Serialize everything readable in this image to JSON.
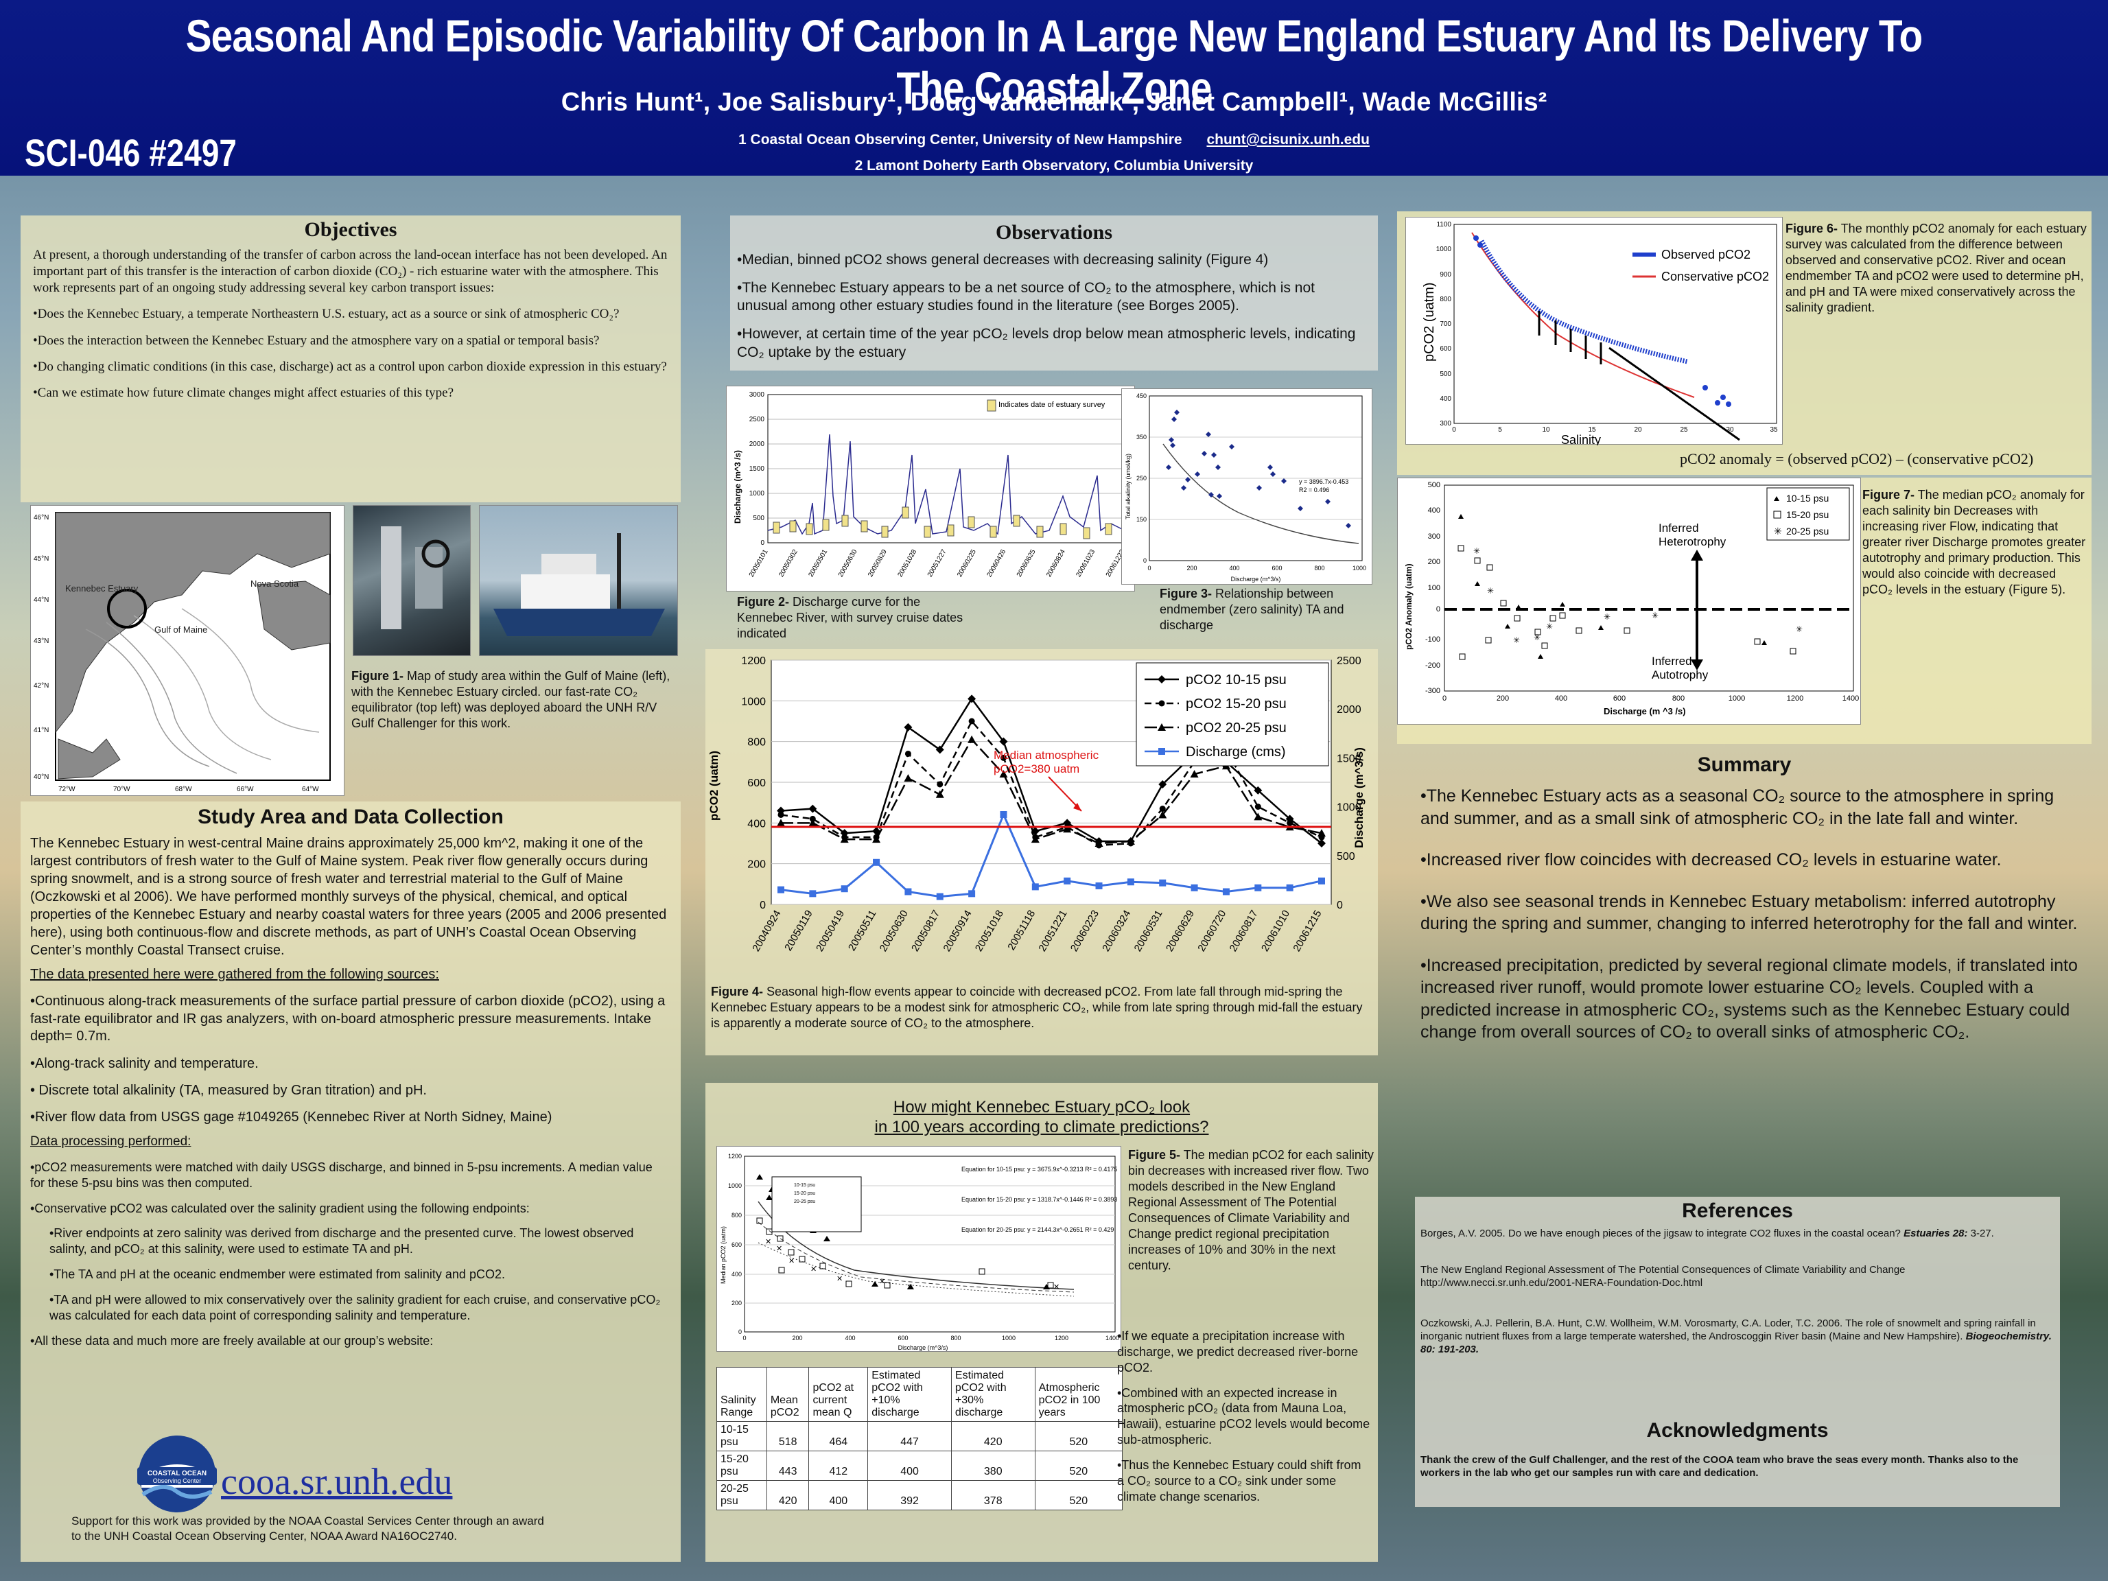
{
  "header": {
    "title": "Seasonal And Episodic Variability Of Carbon In A Large New England Estuary And Its Delivery To The Coastal Zone",
    "authors": "Chris Hunt¹, Joe Salisbury¹, Doug Vandemark¹,  Janet Campbell¹, Wade McGillis²",
    "affil1": "1 Coastal Ocean Observing Center, University of New Hampshire",
    "email": "chunt@cisunix.unh.edu",
    "affil2": "2 Lamont Doherty Earth Observatory, Columbia University",
    "poster_id": "SCI-046 #2497"
  },
  "objectives": {
    "heading": "Objectives",
    "intro": "At present, a thorough understanding of the transfer of carbon across the land-ocean interface has not been developed.  An important part of this transfer is the interaction of carbon dioxide (CO₂) - rich estuarine water with the atmosphere.  This work represents part of an ongoing study addressing several key carbon transport issues:",
    "q1": "•Does the Kennebec Estuary, a temperate Northeastern U.S. estuary, act as a source or sink of atmospheric CO₂?",
    "q2": "•Does the interaction between the Kennebec Estuary and the atmosphere vary on a spatial or temporal basis?",
    "q3": "•Do changing climatic  conditions (in this case, discharge) act as a control upon carbon dioxide expression in this estuary?",
    "q4": "•Can we estimate how future climate changes might affect estuaries of this type?"
  },
  "fig1": {
    "map_labels": {
      "kennebec": "Kennebec Estuary",
      "gulf": "Gulf of Maine",
      "nova": "Nova Scotia"
    },
    "lat_ticks": [
      "46°N",
      "45°N",
      "44°N",
      "43°N",
      "42°N",
      "41°N",
      "40°N"
    ],
    "lon_ticks": [
      "72°W",
      "70°W",
      "68°W",
      "66°W",
      "64°W"
    ],
    "caption_bold": "Figure 1-",
    "caption": " Map of study area within the Gulf of Maine (left), with the Kennebec Estuary circled. our fast-rate CO₂ equilibrator (top left) was deployed aboard the UNH R/V Gulf Challenger for this work."
  },
  "study": {
    "heading": "Study Area and Data Collection",
    "para": "The Kennebec Estuary in west-central Maine drains approximately 25,000 km^2, making it one of the largest contributors of fresh water to the Gulf of Maine system. Peak river flow generally occurs during spring snowmelt, and is a strong source of fresh water and terrestrial material to the Gulf of Maine (Oczkowski et al 2006).  We have performed monthly surveys of the physical, chemical, and optical properties of the Kennebec Estuary and nearby coastal waters for three years (2005 and 2006 presented here), using both continuous-flow and discrete methods, as part of UNH’s Coastal Ocean Observing Center’s monthly Coastal Transect cruise.",
    "sources_heading": "The data presented here were gathered from the following sources:",
    "s1": "•Continuous along-track measurements of the surface partial pressure of carbon dioxide (pCO2), using a fast-rate equilibrator and IR gas analyzers, with on-board atmospheric pressure measurements.  Intake depth= 0.7m.",
    "s2": "•Along-track salinity and temperature.",
    "s3": "• Discrete total alkalinity (TA, measured by Gran titration) and pH.",
    "s4": "•River flow data from USGS gage #1049265 (Kennebec River at North Sidney, Maine)",
    "proc_heading": "Data processing performed:",
    "p1": "•pCO2 measurements were matched with daily USGS discharge, and binned in 5-psu increments.  A median value for these 5-psu bins was then computed.",
    "p2": "•Conservative pCO2 was calculated over the salinity gradient using the following endpoints:",
    "p3": "•River endpoints at zero salinity was derived from discharge and the presented curve.  The lowest observed salinty, and pCO₂ at this salinity, were used to estimate TA and pH.",
    "p4": "•The TA and pH at the oceanic endmember were estimated from salinity and pCO2.",
    "p5": "•TA and pH were allowed to mix conservatively over the salinity gradient for each cruise, and conservative pCO₂ was calculated for each data point of corresponding salinity and temperature.",
    "p6": "•All these data and much more are freely available at our group’s website:",
    "logo_text1": "COASTAL OCEAN",
    "logo_text2": "Observing Center",
    "website": "cooa.sr.unh.edu",
    "support": "Support for this work was provided by the NOAA Coastal Services Center through an award to the UNH Coastal Ocean Observing Center, NOAA Award NA16OC2740."
  },
  "observations": {
    "heading": "Observations",
    "b1": "•Median, binned pCO2 shows general decreases with decreasing salinity (Figure 4)",
    "b2": "•The Kennebec Estuary appears to be a net source of CO₂ to the atmosphere, which is not unusual among other estuary studies found in the literature (see Borges 2005).",
    "b3": "•However, at certain time of the year pCO₂ levels drop below mean atmospheric levels, indicating CO₂ uptake by the estuary"
  },
  "fig2": {
    "ylabel": "Discharge (m^3 /s)",
    "legend": "Indicates date of estuary survey",
    "y_ticks": [
      "0",
      "500",
      "1000",
      "1500",
      "2000",
      "2500",
      "3000"
    ],
    "x_ticks": [
      "20050101",
      "20050302",
      "20050501",
      "20050630",
      "20050829",
      "20051028",
      "20051227",
      "20060225",
      "20060426",
      "20060625",
      "20060824",
      "20061023",
      "20061222"
    ],
    "caption_bold": "Figure 2-",
    "caption": " Discharge curve for the Kennebec River, with survey cruise dates indicated"
  },
  "fig3": {
    "ylabel": "Total alkalinity (umol/kg)",
    "xlabel": "Discharge (m^3/s)",
    "eq1": "y = 3896.7x-0.453",
    "eq2": "R2 = 0.496",
    "y_ticks": [
      "0",
      "50",
      "100",
      "150",
      "200",
      "250",
      "300",
      "350",
      "400",
      "450"
    ],
    "x_ticks": [
      "0",
      "200",
      "400",
      "600",
      "800",
      "1000"
    ],
    "caption_bold": "Figure 3-",
    "caption": " Relationship between endmember (zero salinity) TA and discharge"
  },
  "fig4": {
    "legend": [
      "pCO2 10-15 psu",
      "pCO2 15-20 psu",
      "pCO2 20-25 psu",
      "Discharge (cms)"
    ],
    "ylabel": "pCO2 (uatm)",
    "y2label": "Discharge (m^3/s)",
    "y_ticks": [
      "0",
      "200",
      "400",
      "600",
      "800",
      "1000",
      "1200"
    ],
    "y2_ticks": [
      "0",
      "500",
      "1000",
      "1500",
      "2000",
      "2500"
    ],
    "annotation": "Median atmospheric pCO2=380 uatm",
    "x_ticks": [
      "20040924",
      "20050119",
      "20050419",
      "20050511",
      "20050630",
      "20050817",
      "20050914",
      "20051018",
      "20051118",
      "20051221",
      "20060223",
      "20060324",
      "20060531",
      "20060629",
      "20060720",
      "20060817",
      "20061010",
      "20061215"
    ],
    "caption_bold": "Figure 4-",
    "caption": " Seasonal high-flow events appear to coincide with decreased pCO2.  From late fall through mid-spring the Kennebec Estuary appears to be a modest sink for atmospheric CO₂, while from late spring through mid-fall the estuary is apparently a moderate source of CO₂ to the atmosphere."
  },
  "future": {
    "heading1": "How might Kennebec Estuary pCO₂ look",
    "heading2": "in 100 years according to climate predictions?",
    "eq1": "Equation for 10-15 psu: y = 3675.9x^-0.3213  R² = 0.4175",
    "eq2": "Equation for 15-20 psu: y = 1318.7x^-0.1446  R² = 0.3893",
    "eq3": "Equation for 20-25 psu: y = 2144.3x^-0.2651  R² = 0.429",
    "ylabel": "Median pCO2 (uatm)",
    "xlabel": "Discharge (m^3/s)",
    "y_ticks": [
      "0",
      "200",
      "400",
      "600",
      "800",
      "1000",
      "1200"
    ],
    "x_ticks": [
      "0",
      "200",
      "400",
      "600",
      "800",
      "1000",
      "1200",
      "1400"
    ],
    "caption_bold": "Figure 5-",
    "caption": " The median pCO2 for each salinity bin decreases with increased river flow. Two models described in the New England Regional Assessment of The Potential Consequences of Climate Variability and Change predict regional precipitation increases of 10% and 30% in the next century.",
    "b1": "•If we equate a precipitation increase with discharge, we predict decreased river-borne pCO2.",
    "b2": "•Combined with an expected increase in atmospheric pCO₂ (data from Mauna Loa, Hawaii), estuarine pCO2 levels would become sub-atmospheric.",
    "b3": "•Thus the Kennebec Estuary could shift from a CO₂ source to a CO₂ sink under some climate change scenarios.",
    "table": {
      "headers": [
        "Salinity Range",
        "Mean pCO2",
        "pCO2 at current mean Q",
        "Estimated pCO2 with +10% discharge",
        "Estimated pCO2 with +30% discharge",
        "Atmospheric pCO2 in 100 years"
      ],
      "rows": [
        [
          "10-15 psu",
          "518",
          "464",
          "447",
          "420",
          "520"
        ],
        [
          "15-20 psu",
          "443",
          "412",
          "400",
          "380",
          "520"
        ],
        [
          "20-25 psu",
          "420",
          "400",
          "392",
          "378",
          "520"
        ]
      ]
    }
  },
  "fig6": {
    "ylabel": "pCO2 (uatm)",
    "xlabel": "Salinity",
    "legend1": "Observed pCO2",
    "legend2": "Conservative pCO2",
    "y_ticks": [
      "300",
      "400",
      "500",
      "600",
      "700",
      "800",
      "900",
      "1000",
      "1100"
    ],
    "x_ticks": [
      "0",
      "5",
      "10",
      "15",
      "20",
      "25",
      "30",
      "35"
    ],
    "formula": "pCO2 anomaly =   (observed pCO2) – (conservative pCO2)",
    "caption_bold": "Figure 6-",
    "caption": " The monthly pCO2 anomaly for each estuary survey was calculated from the difference between observed and conservative pCO2.  River and ocean endmember TA and pCO2 were used to determine pH, and pH and TA were mixed conservatively across the salinity gradient."
  },
  "fig7": {
    "ylabel": "pCO2 Anomaly (uatm)",
    "xlabel": "Discharge (m ^3 /s)",
    "legend": [
      "10-15 psu",
      "15-20 psu",
      "20-25 psu"
    ],
    "label_hetero": "Inferred Heterotrophy",
    "label_auto": "Inferred Autotrophy",
    "y_ticks": [
      "-300",
      "-200",
      "-100",
      "0",
      "100",
      "200",
      "300",
      "400",
      "500"
    ],
    "x_ticks": [
      "0",
      "200",
      "400",
      "600",
      "800",
      "1000",
      "1200",
      "1400"
    ],
    "caption_bold": "Figure 7-",
    "caption": " The median pCO₂ anomaly for each salinity bin Decreases with increasing river Flow, indicating that greater river Discharge promotes greater autotrophy and primary production.  This would also coincide with decreased pCO₂ levels in the estuary (Figure 5)."
  },
  "summary": {
    "heading": "Summary",
    "b1": "•The Kennebec Estuary acts as a seasonal CO₂ source to the atmosphere in spring and summer, and as a small sink of atmospheric CO₂ in the late fall and winter.",
    "b2": "•Increased river flow coincides with decreased CO₂ levels in estuarine water.",
    "b3": "•We also see seasonal trends in Kennebec Estuary metabolism: inferred autotrophy during the spring and summer, changing to inferred heterotrophy for the fall and winter.",
    "b4": "•Increased precipitation, predicted by several regional climate models, if translated into increased river runoff, would promote lower estuarine CO₂ levels.  Coupled with a predicted increase in atmospheric CO₂, systems such as the Kennebec Estuary could change from overall sources of CO₂ to overall sinks of atmospheric CO₂."
  },
  "references": {
    "heading": "References",
    "r1a": "Borges, A.V. 2005.  Do we have enough pieces of the jigsaw to integrate CO2 fluxes in the coastal ocean?  ",
    "r1b": "Estuaries 28:",
    "r1c": " 3-27.",
    "r2": "The New England Regional Assessment of The Potential Consequences of Climate Variability and Change http://www.necci.sr.unh.edu/2001-NERA-Foundation-Doc.html",
    "r3a": "Oczkowski, A.J.  Pellerin, B.A.  Hunt, C.W.  Wollheim, W.M.  Vorosmarty, C.A.  Loder, T.C.  2006. The role of snowmelt and spring rainfall in inorganic nutrient fluxes from a large temperate watershed, the Androscoggin River basin (Maine and New Hampshire).  ",
    "r3b": "Biogeochemistry.  80: 191-203."
  },
  "ack": {
    "heading": "Acknowledgments",
    "text": "Thank the crew of the Gulf Challenger, and the rest of the COOA team who brave the seas every month.  Thanks also to the workers in the lab who get our samples run with care and dedication."
  },
  "chart_data": [
    {
      "type": "line",
      "id": "fig4",
      "categories": [
        "20040924",
        "20050119",
        "20050419",
        "20050511",
        "20050630",
        "20050817",
        "20050914",
        "20051018",
        "20051118",
        "20051221",
        "20060223",
        "20060324",
        "20060531",
        "20060629",
        "20060720",
        "20060817",
        "20061010",
        "20061215"
      ],
      "ylim": [
        0,
        1200
      ],
      "y2lim": [
        0,
        2500
      ],
      "atm_line": 380,
      "series": [
        {
          "name": "pCO2 10-15 psu",
          "values": [
            460,
            470,
            350,
            360,
            870,
            760,
            1010,
            800,
            360,
            400,
            310,
            310,
            590,
            740,
            700,
            560,
            420,
            300
          ]
        },
        {
          "name": "pCO2 15-20 psu",
          "values": [
            440,
            420,
            330,
            330,
            740,
            590,
            900,
            720,
            330,
            380,
            290,
            300,
            470,
            700,
            760,
            480,
            400,
            330
          ]
        },
        {
          "name": "pCO2 20-25 psu",
          "values": [
            400,
            400,
            320,
            320,
            620,
            540,
            810,
            640,
            320,
            370,
            300,
            310,
            440,
            640,
            680,
            430,
            380,
            350
          ]
        },
        {
          "name": "Discharge (cms)",
          "axis": "y2",
          "values": [
            150,
            110,
            160,
            430,
            130,
            80,
            110,
            920,
            180,
            240,
            190,
            230,
            220,
            170,
            130,
            170,
            170,
            240
          ]
        }
      ]
    }
  ]
}
